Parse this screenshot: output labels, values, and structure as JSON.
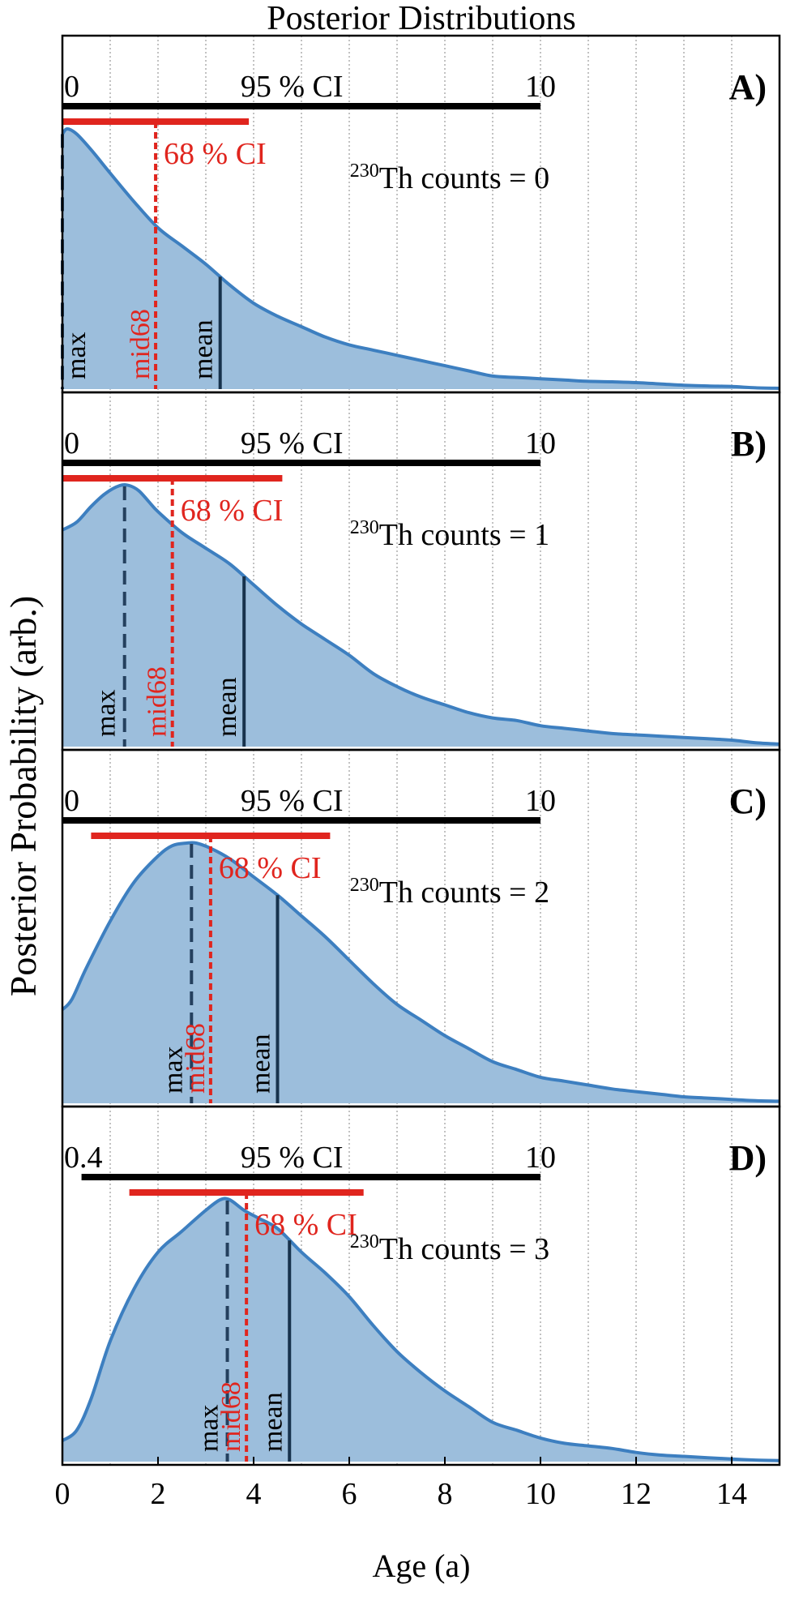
{
  "chart_data": {
    "type": "area",
    "title": "Posterior Distributions",
    "xlabel": "Age (a)",
    "ylabel": "Posterior Probability (arb.)",
    "xlim": [
      0,
      15
    ],
    "x_ticks": [
      "0",
      "2",
      "4",
      "6",
      "8",
      "10",
      "12",
      "14"
    ],
    "x_tick_values": [
      0,
      2,
      4,
      6,
      8,
      10,
      12,
      14
    ],
    "minor_grid_x": [
      1,
      2,
      3,
      4,
      5,
      6,
      7,
      8,
      9,
      10,
      11,
      12,
      13,
      14
    ],
    "grid": "vertical dotted",
    "colors": {
      "fill": "#9cbedc",
      "line": "#3d7fc0",
      "ci95": "#000000",
      "ci68": "#e0251e",
      "max_marker": "#24405e",
      "mean_marker": "#17324c",
      "red_text": "#e0251e"
    },
    "ci95_label": "95 % CI",
    "ci68_label": "68 % CI",
    "marker_labels": {
      "max": "max",
      "mid68": "mid68",
      "mean": "mean"
    },
    "panels": [
      {
        "label": "A)",
        "counts_text": "Th counts = 0",
        "isotope": "230",
        "ci95": [
          0,
          10
        ],
        "ci95_start_label": "0",
        "ci95_end_label": "10",
        "ci68": [
          0,
          3.9
        ],
        "max": 0,
        "mid68": 1.95,
        "mean": 3.3,
        "curve_x": [
          0,
          0.1,
          0.3,
          0.6,
          1,
          1.5,
          2,
          2.5,
          3,
          3.5,
          4,
          4.5,
          5,
          5.5,
          6,
          6.5,
          7,
          7.5,
          8,
          8.5,
          9,
          9.5,
          10,
          10.5,
          11,
          11.5,
          12,
          12.5,
          13,
          13.5,
          14,
          14.5,
          15
        ],
        "curve_y": [
          0.98,
          1.0,
          0.98,
          0.92,
          0.83,
          0.72,
          0.62,
          0.55,
          0.48,
          0.4,
          0.33,
          0.28,
          0.24,
          0.2,
          0.17,
          0.15,
          0.13,
          0.11,
          0.09,
          0.07,
          0.05,
          0.045,
          0.04,
          0.035,
          0.03,
          0.028,
          0.025,
          0.02,
          0.015,
          0.012,
          0.01,
          0.005,
          0.003
        ]
      },
      {
        "label": "B)",
        "counts_text": "Th counts = 1",
        "isotope": "230",
        "ci95": [
          0,
          10
        ],
        "ci95_start_label": "0",
        "ci95_end_label": "10",
        "ci68": [
          0,
          4.6
        ],
        "max": 1.3,
        "mid68": 2.3,
        "mean": 3.8,
        "curve_x": [
          0,
          0.3,
          0.6,
          0.9,
          1.2,
          1.4,
          1.6,
          1.8,
          2,
          2.5,
          3,
          3.5,
          4,
          4.5,
          5,
          5.5,
          6,
          6.5,
          7,
          7.5,
          8,
          8.5,
          9,
          9.5,
          10,
          10.5,
          11,
          11.5,
          12,
          12.5,
          13,
          13.5,
          14,
          14.5,
          15
        ],
        "curve_y": [
          0.83,
          0.86,
          0.92,
          0.97,
          1.0,
          1.0,
          0.98,
          0.94,
          0.9,
          0.82,
          0.76,
          0.7,
          0.62,
          0.54,
          0.47,
          0.41,
          0.35,
          0.28,
          0.23,
          0.19,
          0.16,
          0.13,
          0.11,
          0.1,
          0.08,
          0.07,
          0.06,
          0.05,
          0.045,
          0.04,
          0.035,
          0.03,
          0.025,
          0.015,
          0.01
        ]
      },
      {
        "label": "C)",
        "counts_text": "Th counts = 2",
        "isotope": "230",
        "ci95": [
          0,
          10
        ],
        "ci95_start_label": "0",
        "ci95_end_label": "10",
        "ci68": [
          0.6,
          5.6
        ],
        "max": 2.7,
        "mid68": 3.1,
        "mean": 4.5,
        "curve_x": [
          0,
          0.2,
          0.5,
          1,
          1.5,
          2,
          2.3,
          2.6,
          2.8,
          3.1,
          3.5,
          4,
          4.5,
          5,
          5.5,
          6,
          6.5,
          7,
          7.5,
          8,
          8.5,
          9,
          9.5,
          10,
          10.5,
          11,
          11.5,
          12,
          12.5,
          13,
          13.5,
          14,
          14.5,
          15
        ],
        "curve_y": [
          0.36,
          0.4,
          0.52,
          0.7,
          0.85,
          0.95,
          0.99,
          1.0,
          1.0,
          0.98,
          0.94,
          0.87,
          0.8,
          0.72,
          0.64,
          0.55,
          0.46,
          0.38,
          0.32,
          0.26,
          0.21,
          0.16,
          0.13,
          0.1,
          0.085,
          0.07,
          0.055,
          0.045,
          0.035,
          0.025,
          0.02,
          0.015,
          0.01,
          0.008
        ]
      },
      {
        "label": "D)",
        "counts_text": "Th counts = 3",
        "isotope": "230",
        "ci95": [
          0.4,
          10
        ],
        "ci95_start_label": "0.4",
        "ci95_end_label": "10",
        "ci68": [
          1.4,
          6.3
        ],
        "max": 3.45,
        "mid68": 3.85,
        "mean": 4.75,
        "curve_x": [
          0,
          0.3,
          0.6,
          1,
          1.5,
          2,
          2.5,
          3,
          3.3,
          3.5,
          3.8,
          4.1,
          4.5,
          5,
          5.5,
          6,
          6.5,
          7,
          7.5,
          8,
          8.5,
          9,
          9.5,
          10,
          10.5,
          11,
          11.5,
          12,
          12.5,
          13,
          13.5,
          14,
          14.5,
          15
        ],
        "curve_y": [
          0.08,
          0.12,
          0.24,
          0.46,
          0.66,
          0.8,
          0.88,
          0.96,
          1.0,
          1.0,
          0.96,
          0.93,
          0.89,
          0.8,
          0.72,
          0.63,
          0.52,
          0.42,
          0.34,
          0.27,
          0.21,
          0.15,
          0.12,
          0.09,
          0.07,
          0.06,
          0.05,
          0.035,
          0.025,
          0.02,
          0.015,
          0.01,
          0.006,
          0.004
        ]
      }
    ]
  }
}
